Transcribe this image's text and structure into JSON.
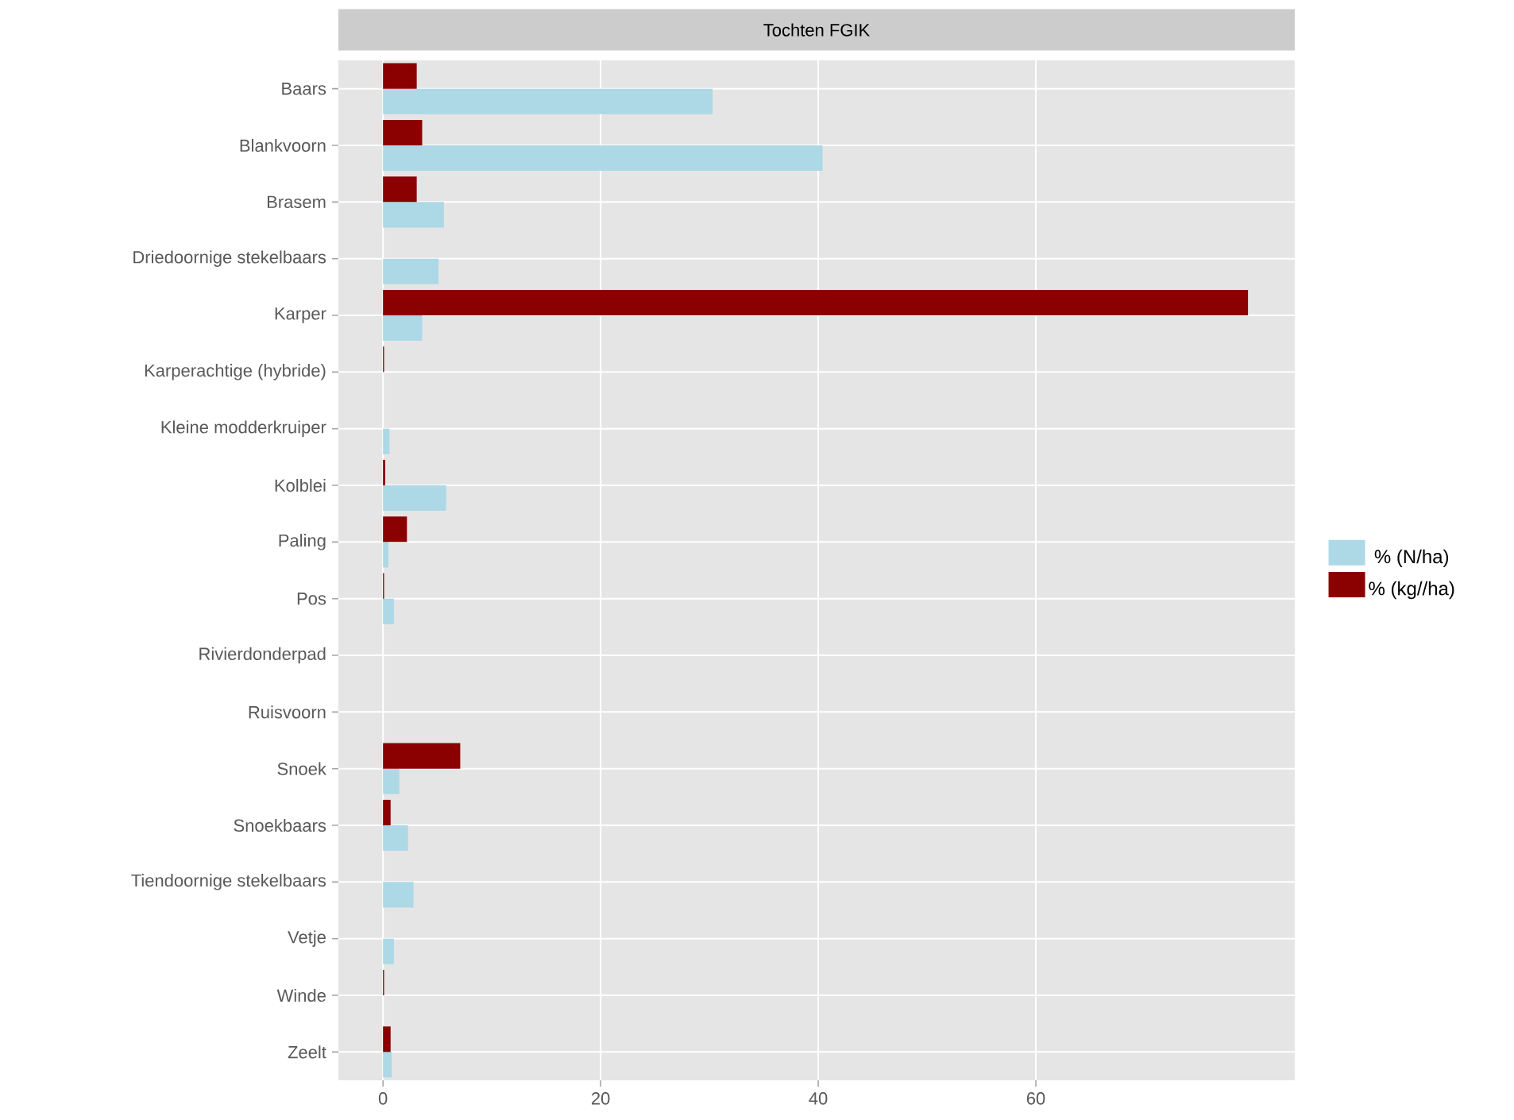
{
  "chart_data": {
    "type": "bar",
    "orientation": "horizontal",
    "title": "Tochten FGIK",
    "categories": [
      "Baars",
      "Blankvoorn",
      "Brasem",
      "Driedoornige stekelbaars",
      "Karper",
      "Karperachtige (hybride)",
      "Kleine modderkruiper",
      "Kolblei",
      "Paling",
      "Pos",
      "Rivierdonderpad",
      "Ruisvoorn",
      "Snoek",
      "Snoekbaars",
      "Tiendoornige stekelbaars",
      "Vetje",
      "Winde",
      "Zeelt"
    ],
    "series": [
      {
        "name": "% (N/ha)",
        "color": "#add8e6",
        "values": [
          30.3,
          40.4,
          5.6,
          5.1,
          3.6,
          0,
          0.6,
          5.8,
          0.5,
          1.0,
          0,
          0,
          1.5,
          2.3,
          2.8,
          1.0,
          0,
          0.8
        ]
      },
      {
        "name": "% (kg//ha)",
        "color": "#8b0000",
        "values": [
          3.1,
          3.6,
          3.1,
          0,
          79.5,
          0.1,
          0,
          0.2,
          2.2,
          0.1,
          0,
          0,
          7.1,
          0.7,
          0,
          0,
          0.1,
          0.7
        ]
      }
    ],
    "xlim": [
      -4.1,
      83.8
    ],
    "xticks": [
      0,
      20,
      40,
      60
    ],
    "grid": true,
    "legend": "right"
  }
}
